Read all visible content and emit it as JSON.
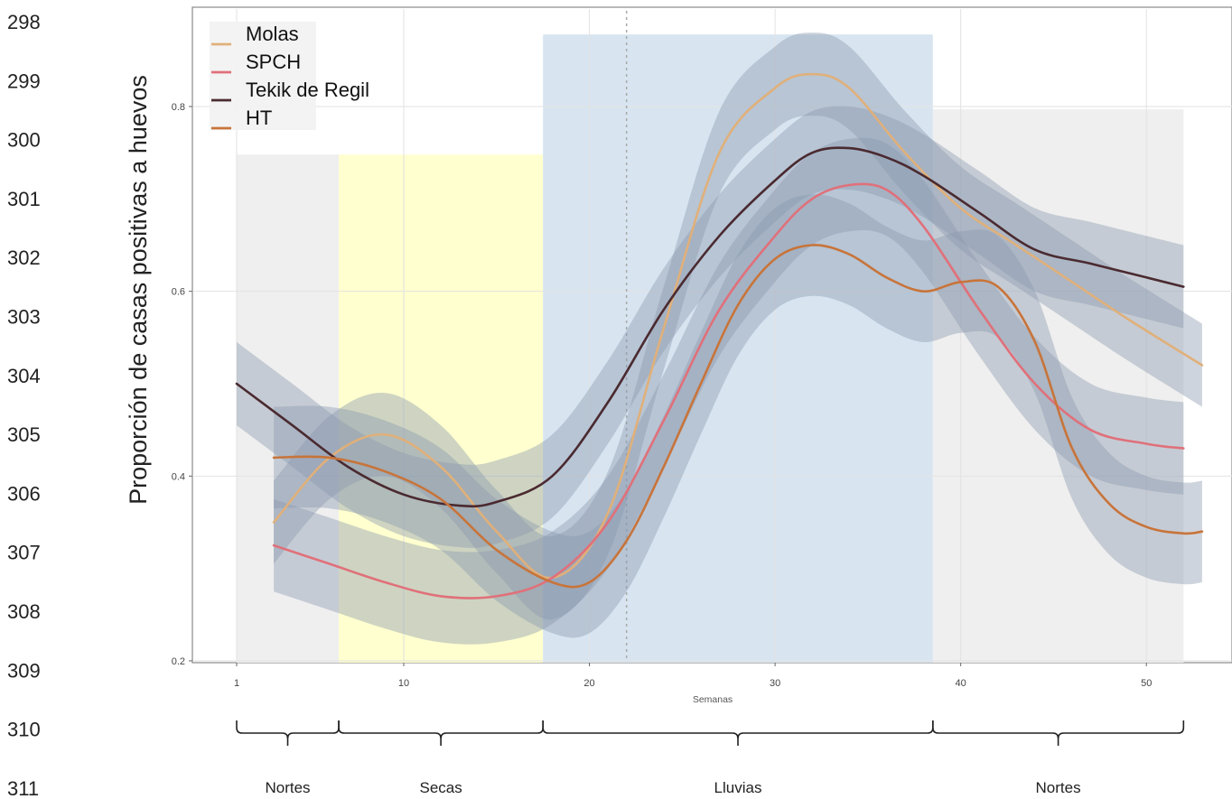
{
  "line_numbers": [
    "298",
    "299",
    "300",
    "301",
    "302",
    "303",
    "304",
    "305",
    "306",
    "307",
    "308",
    "309",
    "310",
    "311"
  ],
  "chart_data": {
    "type": "line",
    "title": "",
    "xlabel": "Semanas",
    "ylabel": "Proporción de casas positivas a huevos",
    "xlim": [
      -1,
      54
    ],
    "ylim": [
      0.2,
      0.88
    ],
    "x_ticks": [
      1,
      10,
      20,
      30,
      40,
      50
    ],
    "y_ticks": [
      0.2,
      0.4,
      0.6,
      0.8
    ],
    "x_tick_labels": [
      "1",
      "10",
      "20",
      "30",
      "40",
      "50"
    ],
    "y_tick_labels": [
      "0.2",
      "0.4",
      "0.6",
      "0.8"
    ],
    "grid": true,
    "legend_position": "top-left",
    "colors": {
      "Molas": "#e0b07a",
      "SPCH": "#e0707a",
      "Tekik de Regil": "#4a2a30",
      "HT": "#c8743a",
      "band": "#8a99ad",
      "season_nortes": "#eeeeee",
      "season_secas": "#ffffcc",
      "season_lluvias": "#d6e4f0"
    },
    "vline_x": 22,
    "series": [
      {
        "name": "Molas",
        "x": [
          3,
          6,
          9,
          12,
          15,
          18,
          21,
          24,
          27,
          30,
          32,
          34,
          37,
          40,
          43,
          46,
          49,
          53
        ],
        "y": [
          0.35,
          0.42,
          0.445,
          0.41,
          0.34,
          0.29,
          0.36,
          0.56,
          0.75,
          0.82,
          0.835,
          0.82,
          0.75,
          0.69,
          0.65,
          0.61,
          0.57,
          0.52
        ],
        "band": 0.045
      },
      {
        "name": "SPCH",
        "x": [
          3,
          6,
          9,
          12,
          15,
          18,
          21,
          24,
          27,
          30,
          32,
          34,
          36,
          38,
          41,
          44,
          47,
          50,
          52
        ],
        "y": [
          0.325,
          0.305,
          0.285,
          0.27,
          0.27,
          0.29,
          0.35,
          0.46,
          0.58,
          0.66,
          0.7,
          0.715,
          0.71,
          0.67,
          0.58,
          0.5,
          0.45,
          0.435,
          0.43
        ],
        "band": 0.05
      },
      {
        "name": "Tekik de Regil",
        "x": [
          1,
          4,
          7,
          10,
          13,
          15,
          18,
          21,
          24,
          27,
          30,
          32,
          34,
          36,
          38,
          41,
          44,
          47,
          50,
          52
        ],
        "y": [
          0.5,
          0.455,
          0.41,
          0.38,
          0.368,
          0.372,
          0.4,
          0.48,
          0.58,
          0.66,
          0.72,
          0.75,
          0.755,
          0.745,
          0.725,
          0.685,
          0.645,
          0.63,
          0.615,
          0.605
        ],
        "band": 0.045
      },
      {
        "name": "HT",
        "x": [
          3,
          6,
          9,
          12,
          15,
          18,
          20,
          22,
          24,
          26,
          28,
          30,
          32,
          34,
          36,
          38,
          40,
          42,
          44,
          46,
          48,
          50,
          52,
          53
        ],
        "y": [
          0.42,
          0.42,
          0.405,
          0.375,
          0.32,
          0.285,
          0.285,
          0.33,
          0.41,
          0.5,
          0.585,
          0.635,
          0.65,
          0.64,
          0.615,
          0.6,
          0.61,
          0.605,
          0.545,
          0.43,
          0.37,
          0.345,
          0.338,
          0.34
        ],
        "band": 0.055
      }
    ],
    "seasons": [
      {
        "label": "Nortes",
        "start": 1,
        "end": 6.5,
        "kind": "nortes",
        "top": 0.748
      },
      {
        "label": "Secas",
        "start": 6.5,
        "end": 17.5,
        "kind": "secas",
        "top": 0.748
      },
      {
        "label": "Lluvias",
        "start": 17.5,
        "end": 38.5,
        "kind": "lluvias",
        "top": 0.878
      },
      {
        "label": "Nortes",
        "start": 38.5,
        "end": 52,
        "kind": "nortes",
        "top": 0.797
      }
    ]
  }
}
